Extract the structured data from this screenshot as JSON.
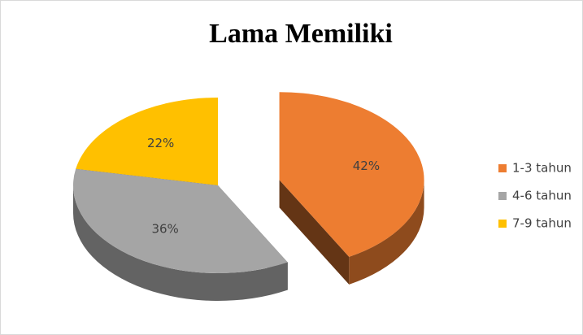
{
  "chart_data": {
    "type": "pie3d",
    "title": "Lama Memiliki",
    "categories": [
      "1-3 tahun",
      "4-6 tahun",
      "7-9 tahun"
    ],
    "values": [
      42,
      36,
      22
    ],
    "value_labels": [
      "42%",
      "36%",
      "22%"
    ],
    "colors": [
      "#ED7D31",
      "#A5A5A5",
      "#FFC000"
    ],
    "legend": "right"
  }
}
